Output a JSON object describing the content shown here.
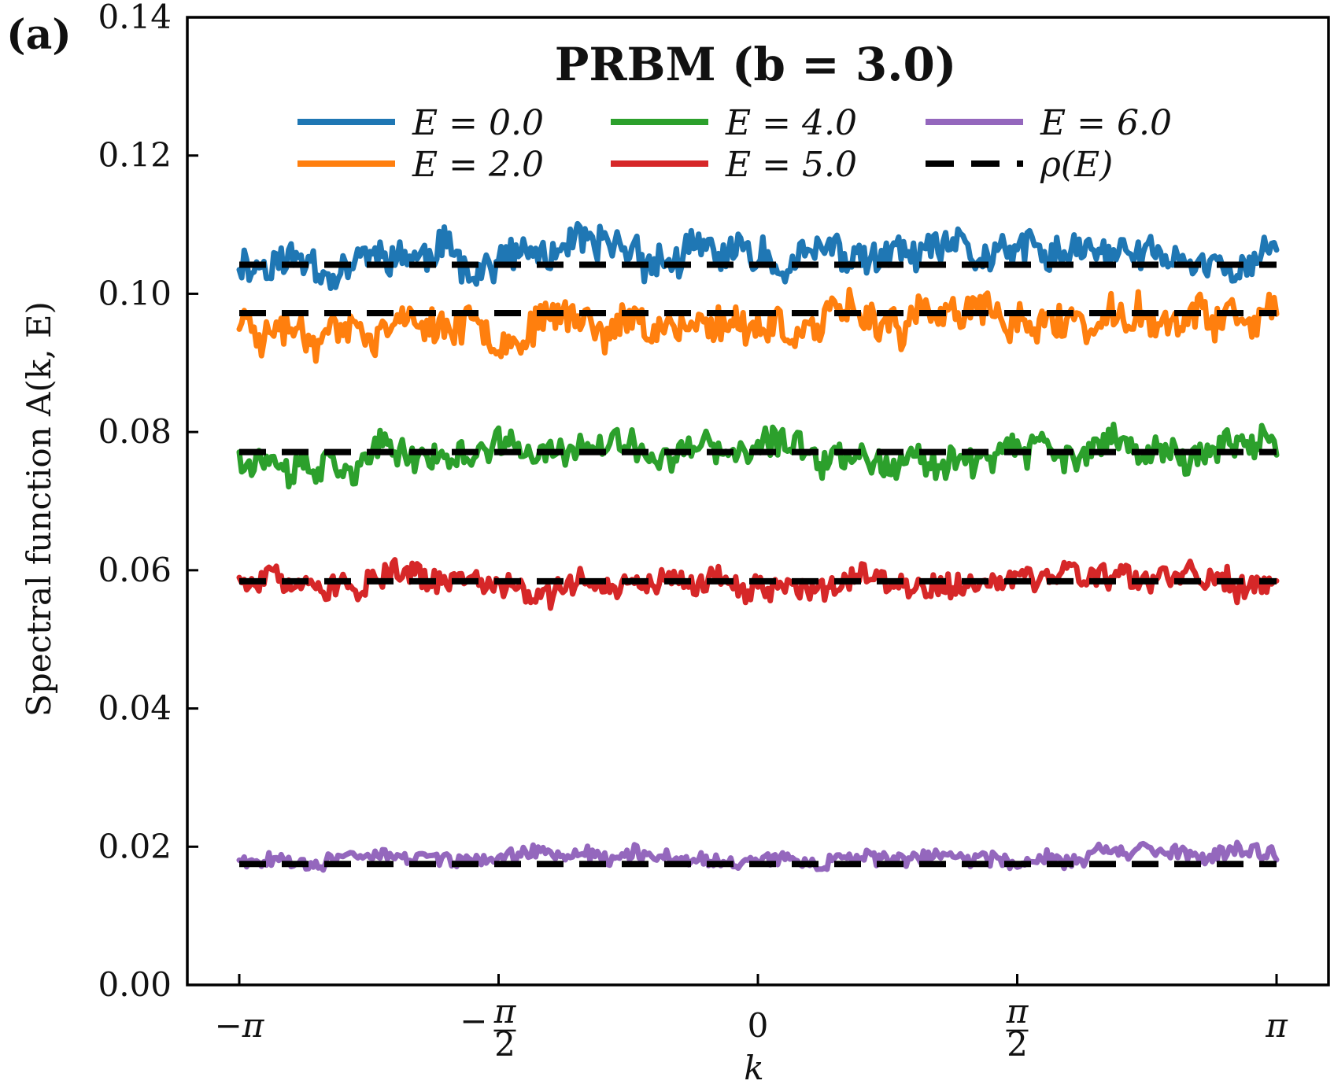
{
  "panel_label": "(a)",
  "chart_data": {
    "type": "line",
    "title": "PRBM (b = 3.0)",
    "xlabel": "k",
    "ylabel": "Spectral function A(k, E)",
    "xlim": [
      -3.1416,
      3.1416
    ],
    "ylim": [
      0.0,
      0.14
    ],
    "x_ticks": [
      {
        "value": -3.1416,
        "label": "−π"
      },
      {
        "value": -1.5708,
        "label": "−π/2"
      },
      {
        "value": 0,
        "label": "0"
      },
      {
        "value": 1.5708,
        "label": "π/2"
      },
      {
        "value": 3.1416,
        "label": "π"
      }
    ],
    "y_ticks": [
      {
        "value": 0.0,
        "label": "0.00"
      },
      {
        "value": 0.02,
        "label": "0.02"
      },
      {
        "value": 0.04,
        "label": "0.04"
      },
      {
        "value": 0.06,
        "label": "0.06"
      },
      {
        "value": 0.08,
        "label": "0.08"
      },
      {
        "value": 0.1,
        "label": "0.10"
      },
      {
        "value": 0.12,
        "label": "0.12"
      },
      {
        "value": 0.14,
        "label": "0.14"
      }
    ],
    "grid": false,
    "legend_position": "top",
    "series": [
      {
        "name": "E =  0.0",
        "color": "#1f77b4",
        "mean": 0.105,
        "amplitude": 0.0028,
        "seed": 11,
        "style": "solid"
      },
      {
        "name": "E =  2.0",
        "color": "#ff7f0e",
        "mean": 0.096,
        "amplitude": 0.0028,
        "seed": 23,
        "style": "solid"
      },
      {
        "name": "E =  4.0",
        "color": "#2ca02c",
        "mean": 0.077,
        "amplitude": 0.0024,
        "seed": 37,
        "style": "solid"
      },
      {
        "name": "E =  5.0",
        "color": "#d62728",
        "mean": 0.058,
        "amplitude": 0.002,
        "seed": 51,
        "style": "solid"
      },
      {
        "name": "E =  6.0",
        "color": "#9467bd",
        "mean": 0.0185,
        "amplitude": 0.0011,
        "seed": 67,
        "style": "solid"
      }
    ],
    "reference_lines": {
      "name": "ρ(E)",
      "color": "#000000",
      "style": "dashed",
      "values": [
        0.1042,
        0.0972,
        0.0771,
        0.0584,
        0.0175
      ]
    },
    "legend_entries": [
      {
        "label": "E =  0.0",
        "color": "#1f77b4",
        "style": "solid"
      },
      {
        "label": "E =  4.0",
        "color": "#2ca02c",
        "style": "solid"
      },
      {
        "label": "E =  6.0",
        "color": "#9467bd",
        "style": "solid"
      },
      {
        "label": "E =  2.0",
        "color": "#ff7f0e",
        "style": "solid"
      },
      {
        "label": "E =  5.0",
        "color": "#d62728",
        "style": "solid"
      },
      {
        "label": "ρ(E)",
        "color": "#000000",
        "style": "dashed"
      }
    ]
  }
}
